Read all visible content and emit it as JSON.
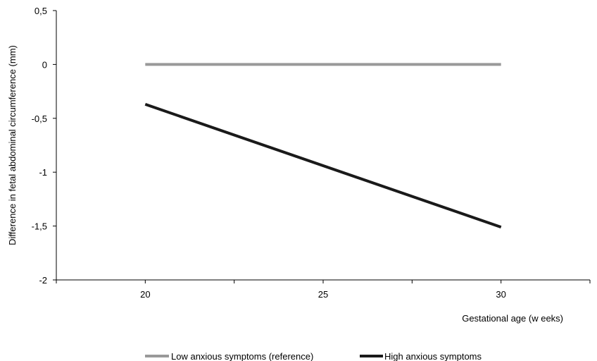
{
  "chart_data": {
    "type": "line",
    "x": [
      20,
      30
    ],
    "xticks": [
      "20",
      "25",
      "30"
    ],
    "xtick_values": [
      20,
      25,
      30
    ],
    "xlim": [
      17.5,
      32.5
    ],
    "ylim": [
      -2,
      0.5
    ],
    "yticks": [
      "0,5",
      "0",
      "-0,5",
      "-1",
      "-1,5",
      "-2"
    ],
    "ytick_values": [
      0.5,
      0,
      -0.5,
      -1,
      -1.5,
      -2
    ],
    "xlabel": "Gestational age (w eeks)",
    "ylabel": "Difference in fetal abdominal circumference (mm)",
    "grid": false,
    "legend_position": "bottom",
    "series": [
      {
        "name": "Low anxious symptoms (reference)",
        "values": [
          0,
          0
        ],
        "color": "#999999"
      },
      {
        "name": "High anxious symptoms",
        "values": [
          -0.37,
          -1.51
        ],
        "color": "#1a1a1a"
      }
    ]
  }
}
